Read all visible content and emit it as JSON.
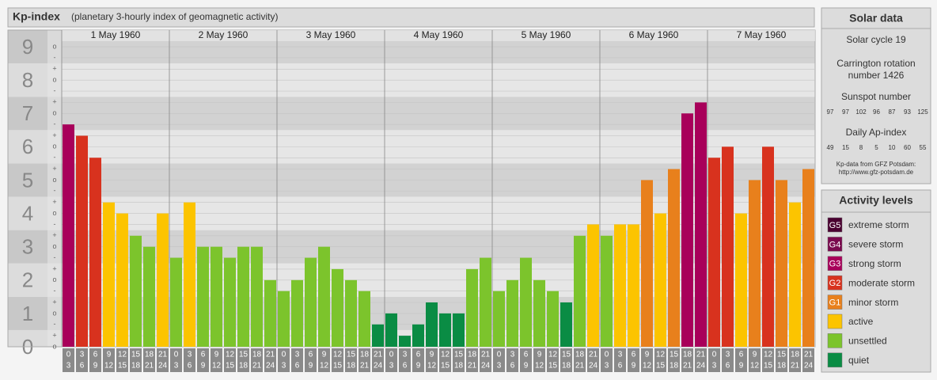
{
  "chart_data": {
    "type": "bar",
    "title": "Kp-index",
    "subtitle": "(planetary 3-hourly index of geomagnetic activity)",
    "ylim": [
      0,
      9.5
    ],
    "yticks": [
      0,
      1,
      2,
      3,
      4,
      5,
      6,
      7,
      8,
      9
    ],
    "minor_ticks": [
      {
        "value": 0,
        "label": "o"
      },
      {
        "value": 0.33,
        "label": "+"
      },
      {
        "value": 0.67,
        "label": "-"
      },
      {
        "value": 1,
        "label": "o"
      },
      {
        "value": 1.33,
        "label": "+"
      },
      {
        "value": 1.67,
        "label": "-"
      },
      {
        "value": 2,
        "label": "o"
      },
      {
        "value": 2.33,
        "label": "+"
      },
      {
        "value": 2.67,
        "label": "-"
      },
      {
        "value": 3,
        "label": "o"
      },
      {
        "value": 3.33,
        "label": "+"
      },
      {
        "value": 3.67,
        "label": "-"
      },
      {
        "value": 4,
        "label": "o"
      },
      {
        "value": 4.33,
        "label": "+"
      },
      {
        "value": 4.67,
        "label": "-"
      },
      {
        "value": 5,
        "label": "o"
      },
      {
        "value": 5.33,
        "label": "+"
      },
      {
        "value": 5.67,
        "label": "-"
      },
      {
        "value": 6,
        "label": "o"
      },
      {
        "value": 6.33,
        "label": "+"
      },
      {
        "value": 6.67,
        "label": "-"
      },
      {
        "value": 7,
        "label": "o"
      },
      {
        "value": 7.33,
        "label": "+"
      },
      {
        "value": 7.67,
        "label": "-"
      },
      {
        "value": 8,
        "label": "o"
      },
      {
        "value": 8.33,
        "label": "+"
      },
      {
        "value": 8.67,
        "label": "-"
      },
      {
        "value": 9,
        "label": "o"
      }
    ],
    "hours": [
      [
        "0",
        "3"
      ],
      [
        "3",
        "6"
      ],
      [
        "6",
        "9"
      ],
      [
        "9",
        "12"
      ],
      [
        "12",
        "15"
      ],
      [
        "15",
        "18"
      ],
      [
        "18",
        "21"
      ],
      [
        "21",
        "24"
      ]
    ],
    "series": [
      {
        "name": "1 May 1960",
        "values": [
          6.67,
          6.33,
          5.67,
          4.33,
          4,
          3.33,
          3,
          4
        ],
        "colors": [
          "#a8005a",
          "#d8321e",
          "#d8321e",
          "#fcc400",
          "#fcc400",
          "#7cc42c",
          "#7cc42c",
          "#fcc400"
        ]
      },
      {
        "name": "2 May 1960",
        "values": [
          2.67,
          4.33,
          3,
          3,
          2.67,
          3,
          3,
          2
        ],
        "colors": [
          "#7cc42c",
          "#fcc400",
          "#7cc42c",
          "#7cc42c",
          "#7cc42c",
          "#7cc42c",
          "#7cc42c",
          "#7cc42c"
        ]
      },
      {
        "name": "3 May 1960",
        "values": [
          1.67,
          2,
          2.67,
          3,
          2.33,
          2,
          1.67,
          0.67
        ],
        "colors": [
          "#7cc42c",
          "#7cc42c",
          "#7cc42c",
          "#7cc42c",
          "#7cc42c",
          "#7cc42c",
          "#7cc42c",
          "#0a8c44"
        ]
      },
      {
        "name": "4 May 1960",
        "values": [
          1,
          0.33,
          0.67,
          1.33,
          1,
          1,
          2.33,
          2.67
        ],
        "colors": [
          "#0a8c44",
          "#0a8c44",
          "#0a8c44",
          "#0a8c44",
          "#0a8c44",
          "#0a8c44",
          "#7cc42c",
          "#7cc42c"
        ]
      },
      {
        "name": "5 May 1960",
        "values": [
          1.67,
          2,
          2.67,
          2,
          1.67,
          1.33,
          3.33,
          3.67
        ],
        "colors": [
          "#7cc42c",
          "#7cc42c",
          "#7cc42c",
          "#7cc42c",
          "#7cc42c",
          "#0a8c44",
          "#7cc42c",
          "#fcc400"
        ]
      },
      {
        "name": "6 May 1960",
        "values": [
          3.33,
          3.67,
          3.67,
          5,
          4,
          5.33,
          7,
          7.33
        ],
        "colors": [
          "#7cc42c",
          "#fcc400",
          "#fcc400",
          "#e8801c",
          "#fcc400",
          "#e8801c",
          "#a8005a",
          "#a8005a"
        ]
      },
      {
        "name": "7 May 1960",
        "values": [
          5.67,
          6,
          4,
          5,
          6,
          5,
          4.33,
          5.33
        ],
        "colors": [
          "#d8321e",
          "#d8321e",
          "#fcc400",
          "#e8801c",
          "#d8321e",
          "#e8801c",
          "#fcc400",
          "#e8801c"
        ]
      }
    ]
  },
  "solar_data": {
    "title": "Solar data",
    "cycle": "Solar cycle 19",
    "carrington": [
      "Carrington rotation",
      "number 1426"
    ],
    "sunspot_title": "Sunspot number",
    "sunspot": [
      97,
      97,
      102,
      96,
      87,
      93,
      125
    ],
    "ap_title": "Daily Ap-index",
    "ap": [
      49,
      15,
      8,
      5,
      10,
      60,
      55
    ],
    "source": [
      "Kp-data from GFZ Potsdam:",
      "http://www.gfz-potsdam.de"
    ]
  },
  "activity_levels": {
    "title": "Activity levels",
    "levels": [
      {
        "code": "G5",
        "label": "extreme storm",
        "color": "#4a0030"
      },
      {
        "code": "G4",
        "label": "severe storm",
        "color": "#7a0a4e"
      },
      {
        "code": "G3",
        "label": "strong storm",
        "color": "#a8005a"
      },
      {
        "code": "G2",
        "label": "moderate storm",
        "color": "#d8321e"
      },
      {
        "code": "G1",
        "label": "minor storm",
        "color": "#e8801c"
      },
      {
        "label": "active",
        "color": "#fcc400"
      },
      {
        "label": "unsettled",
        "color": "#7cc42c"
      },
      {
        "label": "quiet",
        "color": "#0a8c44"
      }
    ]
  }
}
